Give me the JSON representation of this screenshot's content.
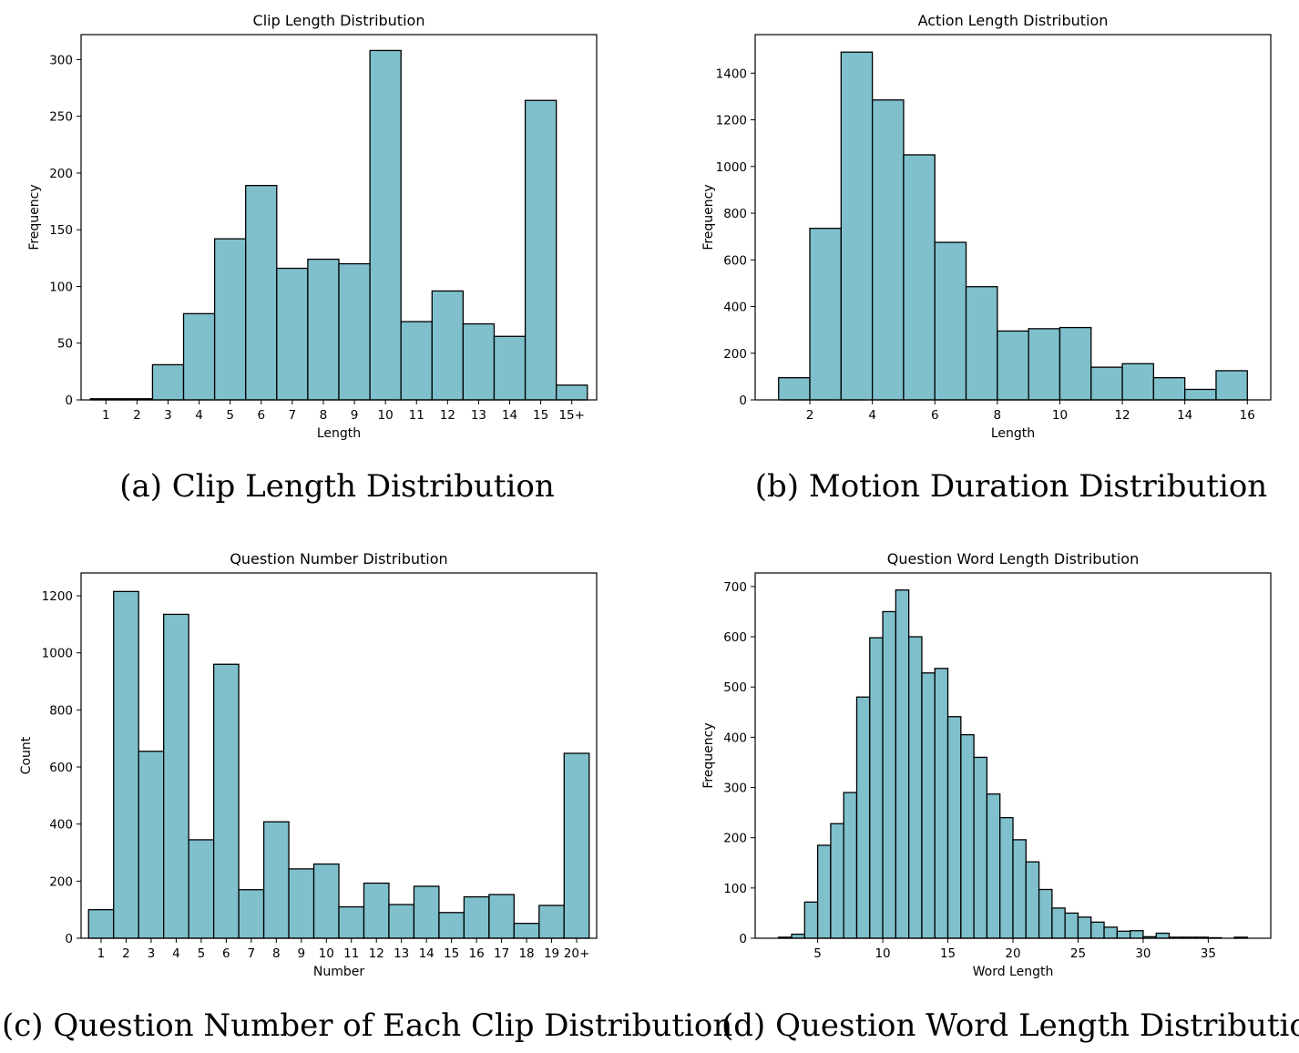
{
  "colors": {
    "bar_fill": "#7fc0cc",
    "bar_edge": "#000000",
    "axes": "#000000",
    "background": "#ffffff"
  },
  "captions": [
    "(a) Clip Length Distribution",
    "(b) Motion Duration Distribution",
    "(c) Question Number of Each Clip Distribution",
    "(d) Question Word Length Distribution"
  ],
  "chart_data": [
    {
      "type": "bar",
      "title": "Clip Length Distribution",
      "xlabel": "Length",
      "ylabel": "Frequency",
      "categories": [
        "1",
        "2",
        "3",
        "4",
        "5",
        "6",
        "7",
        "8",
        "9",
        "10",
        "11",
        "12",
        "13",
        "14",
        "15",
        "15+"
      ],
      "values": [
        1,
        1,
        31,
        76,
        142,
        189,
        116,
        124,
        120,
        308,
        69,
        96,
        67,
        56,
        264,
        13
      ],
      "ylim": [
        0,
        322
      ],
      "yticks": [
        0,
        50,
        100,
        150,
        200,
        250,
        300
      ],
      "grid": false
    },
    {
      "type": "bar",
      "title": "Action Length Distribution",
      "xlabel": "Length",
      "ylabel": "Frequency",
      "bin_edges": [
        1,
        2,
        3,
        4,
        5,
        6,
        7,
        8,
        9,
        10,
        11,
        12,
        13,
        14,
        15,
        16
      ],
      "values": [
        95,
        735,
        1490,
        1285,
        1050,
        675,
        485,
        295,
        305,
        310,
        140,
        155,
        95,
        45,
        125
      ],
      "xlim": [
        0.25,
        16.75
      ],
      "xticks": [
        2,
        4,
        6,
        8,
        10,
        12,
        14,
        16
      ],
      "ylim": [
        0,
        1565
      ],
      "yticks": [
        0,
        200,
        400,
        600,
        800,
        1000,
        1200,
        1400
      ],
      "grid": false
    },
    {
      "type": "bar",
      "title": "Question Number Distribution",
      "xlabel": "Number",
      "ylabel": "Count",
      "categories": [
        "1",
        "2",
        "3",
        "4",
        "5",
        "6",
        "7",
        "8",
        "9",
        "10",
        "11",
        "12",
        "13",
        "14",
        "15",
        "16",
        "17",
        "18",
        "19",
        "20+"
      ],
      "values": [
        100,
        1215,
        655,
        1135,
        345,
        960,
        170,
        408,
        243,
        260,
        110,
        193,
        118,
        182,
        90,
        145,
        153,
        52,
        115,
        648
      ],
      "ylim": [
        0,
        1280
      ],
      "yticks": [
        0,
        200,
        400,
        600,
        800,
        1000,
        1200
      ],
      "grid": false
    },
    {
      "type": "bar",
      "title": "Question Word Length Distribution",
      "xlabel": "Word Length",
      "ylabel": "Frequency",
      "bin_edges": [
        2,
        3,
        4,
        5,
        6,
        7,
        8,
        9,
        10,
        11,
        12,
        13,
        14,
        15,
        16,
        17,
        18,
        19,
        20,
        21,
        22,
        23,
        24,
        25,
        26,
        27,
        28,
        29,
        30,
        31,
        32,
        33,
        34,
        35,
        36,
        37,
        38
      ],
      "values": [
        2,
        8,
        72,
        185,
        228,
        290,
        480,
        598,
        650,
        693,
        600,
        528,
        537,
        441,
        405,
        360,
        287,
        240,
        196,
        152,
        97,
        60,
        50,
        42,
        32,
        22,
        14,
        15,
        3,
        10,
        2,
        2,
        2,
        1,
        0,
        2
      ],
      "xlim": [
        0.2,
        39.8
      ],
      "xticks": [
        5,
        10,
        15,
        20,
        25,
        30,
        35
      ],
      "ylim": [
        0,
        727
      ],
      "yticks": [
        0,
        100,
        200,
        300,
        400,
        500,
        600,
        700
      ],
      "grid": false
    }
  ]
}
